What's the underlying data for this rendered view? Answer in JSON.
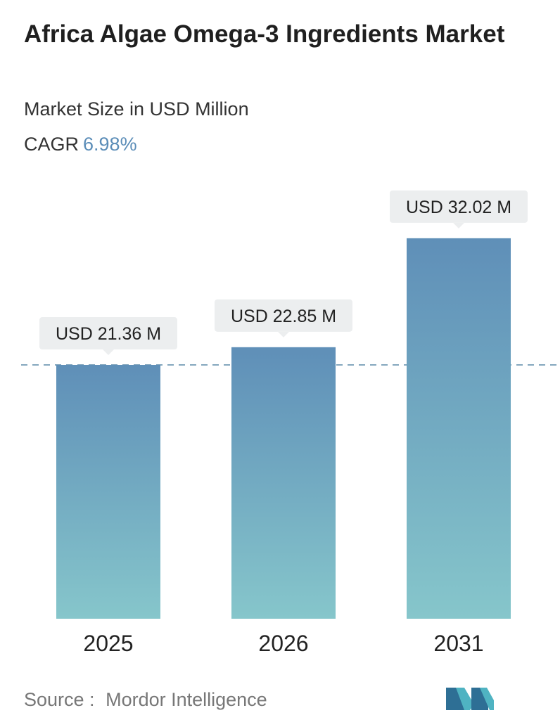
{
  "header": {
    "title": "Africa Algae Omega-3 Ingredients Market",
    "subtitle": "Market Size in USD Million",
    "cagr_label": "CAGR",
    "cagr_value": "6.98%"
  },
  "chart_data": {
    "type": "bar",
    "categories": [
      "2025",
      "2026",
      "2031"
    ],
    "values": [
      21.36,
      22.85,
      32.02
    ],
    "data_labels": [
      "USD 21.36 M",
      "USD 22.85 M",
      "USD 32.02 M"
    ],
    "ylabel": "",
    "xlabel": "",
    "grid": false,
    "reference_line": 21.36
  },
  "footer": {
    "source_label": "Source :",
    "source_name": "Mordor Intelligence",
    "logo_icon": "mordor-intelligence-logo-icon"
  },
  "colors": {
    "bar_top": "#5f8fb8",
    "bar_bottom": "#86c6cb",
    "label_bg": "#eceeef",
    "cagr_accent": "#5b8db8",
    "dash_line": "#5b8aa8"
  }
}
